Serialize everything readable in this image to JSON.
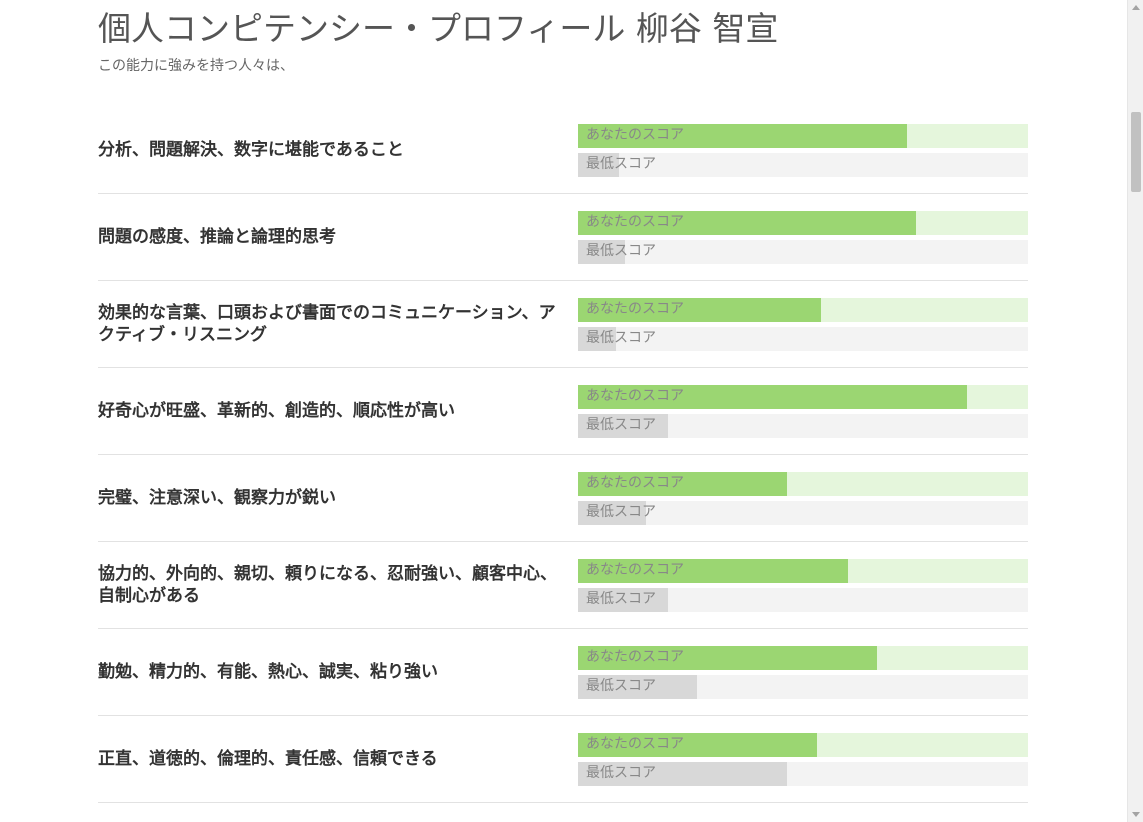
{
  "header": {
    "title": "個人コンピテンシー・プロフィール 柳谷 智宣",
    "subtitle": "この能力に強みを持つ人々は、"
  },
  "labels": {
    "your_score": "あなたのスコア",
    "min_score": "最低スコア"
  },
  "colors": {
    "your_fill": "#9bd672",
    "your_track": "#e5f6dc",
    "min_fill": "#d8d8d8",
    "min_track": "#f3f3f3"
  },
  "competencies": [
    {
      "label": "分析、問題解決、数字に堪能であること",
      "your_score_pct": 73,
      "min_score_pct": 9
    },
    {
      "label": "問題の感度、推論と論理的思考",
      "your_score_pct": 75,
      "min_score_pct": 10.5
    },
    {
      "label": "効果的な言葉、口頭および書面でのコミュニケーション、アクティブ・リスニング",
      "your_score_pct": 54,
      "min_score_pct": 8.5
    },
    {
      "label": "好奇心が旺盛、革新的、創造的、順応性が高い",
      "your_score_pct": 86.5,
      "min_score_pct": 20
    },
    {
      "label": "完璧、注意深い、観察力が鋭い",
      "your_score_pct": 46.5,
      "min_score_pct": 15
    },
    {
      "label": "協力的、外向的、親切、頼りになる、忍耐強い、顧客中心、自制心がある",
      "your_score_pct": 60,
      "min_score_pct": 20
    },
    {
      "label": "勤勉、精力的、有能、熱心、誠実、粘り強い",
      "your_score_pct": 66.5,
      "min_score_pct": 26.5
    },
    {
      "label": "正直、道徳的、倫理的、責任感、信頼できる",
      "your_score_pct": 53,
      "min_score_pct": 46.5
    }
  ]
}
